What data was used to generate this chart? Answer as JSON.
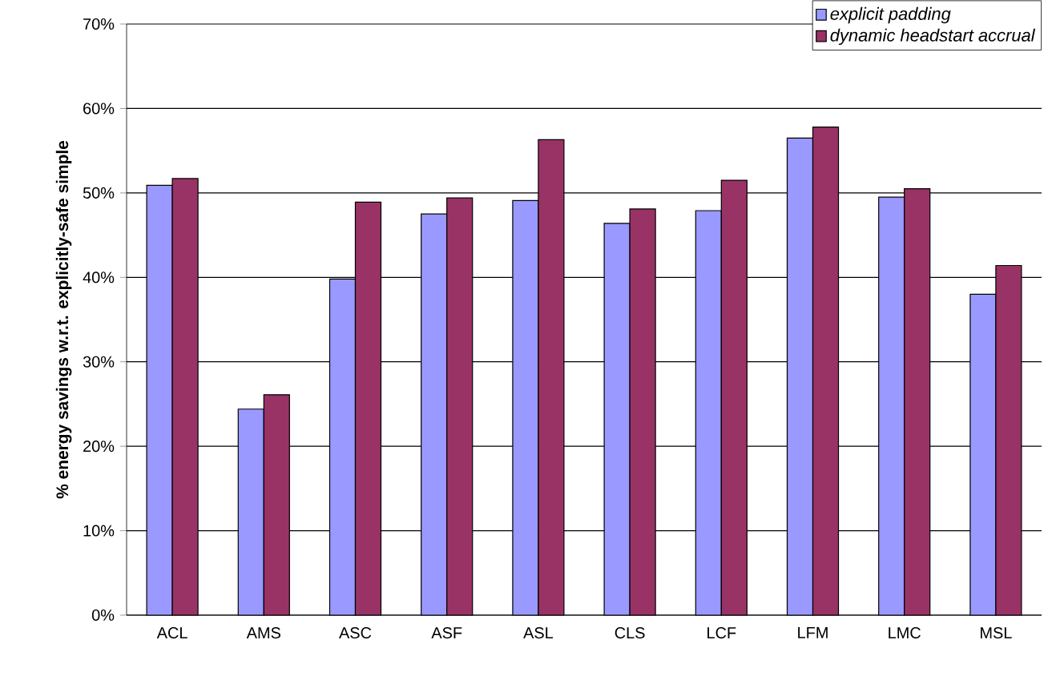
{
  "chart_data": {
    "type": "bar",
    "ylabel": "% energy savings w.r.t. explicitly-safe simple",
    "categories": [
      "ACL",
      "AMS",
      "ASC",
      "ASF",
      "ASL",
      "CLS",
      "LCF",
      "LFM",
      "LMC",
      "MSL"
    ],
    "series": [
      {
        "name": "explicit padding",
        "color": "#9999ff",
        "values": [
          50.9,
          24.4,
          39.8,
          47.5,
          49.1,
          46.4,
          47.9,
          56.5,
          49.5,
          38.0
        ]
      },
      {
        "name": "dynamic headstart accrual",
        "color": "#993366",
        "values": [
          51.7,
          26.1,
          48.9,
          49.4,
          56.3,
          48.1,
          51.5,
          57.8,
          50.5,
          41.4
        ]
      }
    ],
    "ylim": [
      0,
      70
    ],
    "yticks": [
      {
        "value": 0,
        "label": "0%"
      },
      {
        "value": 10,
        "label": "10%"
      },
      {
        "value": 20,
        "label": "20%"
      },
      {
        "value": 30,
        "label": "30%"
      },
      {
        "value": 40,
        "label": "40%"
      },
      {
        "value": 50,
        "label": "50%"
      },
      {
        "value": 60,
        "label": "60%"
      },
      {
        "value": 70,
        "label": "70%"
      }
    ],
    "grid": "y",
    "legend": "top right"
  }
}
